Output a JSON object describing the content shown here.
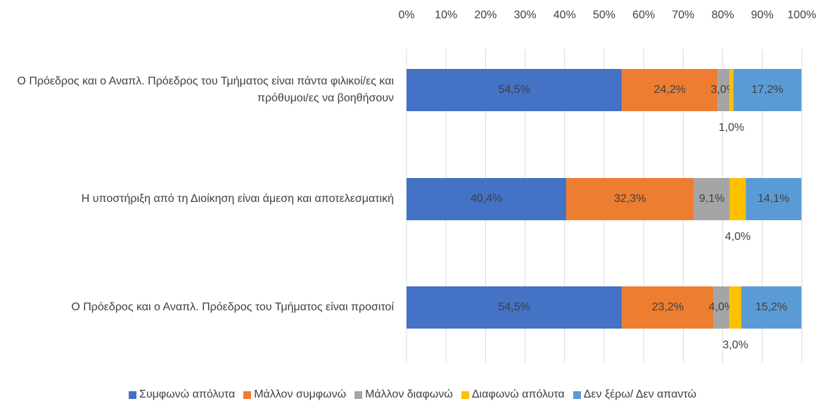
{
  "chart_data": {
    "type": "stacked-bar-horizontal",
    "categories": [
      "Ο Πρόεδρος και ο Αναπλ. Πρόεδρος του Τμήματος είναι πάντα φιλικοί/ες και πρόθυμοι/ες να βοηθήσουν",
      "Η υποστήριξη από τη Διοίκηση είναι άμεση και αποτελεσματική",
      "Ο Πρόεδρος και ο Αναπλ. Πρόεδρος του Τμήματος είναι προσιτοί"
    ],
    "series": [
      {
        "name": "Συμφωνώ απόλυτα",
        "color": "#4472c4",
        "values": [
          54.5,
          40.4,
          54.5
        ],
        "value_labels": [
          "54,5%",
          "40,4%",
          "54,5%"
        ]
      },
      {
        "name": "Μάλλον συμφωνώ",
        "color": "#ed7d31",
        "values": [
          24.2,
          32.3,
          23.2
        ],
        "value_labels": [
          "24,2%",
          "32,3%",
          "23,2%"
        ]
      },
      {
        "name": "Μάλλον διαφωνώ",
        "color": "#a5a5a5",
        "values": [
          3.0,
          9.1,
          4.0
        ],
        "value_labels": [
          "3,0%",
          "9,1%",
          "4,0%"
        ]
      },
      {
        "name": "Διαφωνώ απόλυτα",
        "color": "#ffc000",
        "values": [
          1.0,
          4.0,
          3.0
        ],
        "value_labels": [
          "1,0%",
          "4,0%",
          "3,0%"
        ]
      },
      {
        "name": "Δεν ξέρω/ Δεν απαντώ",
        "color": "#5b9bd5",
        "values": [
          17.2,
          14.1,
          15.2
        ],
        "value_labels": [
          "17,2%",
          "14,1%",
          "15,2%"
        ]
      }
    ],
    "xlim": [
      0,
      100
    ],
    "xticks": [
      {
        "value": 0,
        "label": "0%"
      },
      {
        "value": 10,
        "label": "10%"
      },
      {
        "value": 20,
        "label": "20%"
      },
      {
        "value": 30,
        "label": "30%"
      },
      {
        "value": 40,
        "label": "40%"
      },
      {
        "value": 50,
        "label": "50%"
      },
      {
        "value": 60,
        "label": "60%"
      },
      {
        "value": 70,
        "label": "70%"
      },
      {
        "value": 80,
        "label": "80%"
      },
      {
        "value": 90,
        "label": "90%"
      },
      {
        "value": 100,
        "label": "100%"
      }
    ],
    "grid": true,
    "legend": "bottom"
  }
}
